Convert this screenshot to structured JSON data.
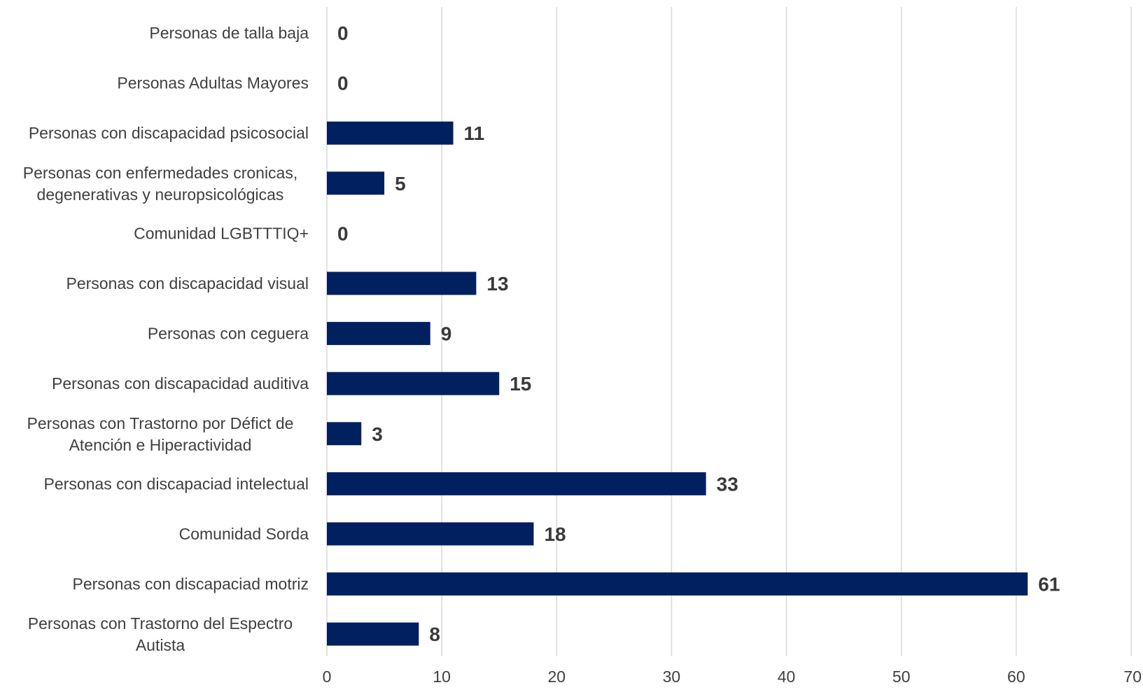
{
  "chart_data": {
    "type": "bar",
    "orientation": "horizontal",
    "categories": [
      "Personas de talla baja",
      "Personas Adultas Mayores",
      "Personas con discapacidad psicosocial",
      "Personas con enfermedades cronicas, degenerativas y neuropsicológicas",
      "Comunidad LGBTTTIQ+",
      "Personas con discapacidad visual",
      "Personas con ceguera",
      "Personas con discapacidad auditiva",
      "Personas con Trastorno por Défict de Atención e Hiperactividad",
      "Personas con discapaciad intelectual",
      "Comunidad Sorda",
      "Personas con discapaciad motriz",
      "Personas con Trastorno del Espectro Autista"
    ],
    "category_lines": [
      [
        "Personas de talla baja"
      ],
      [
        "Personas Adultas Mayores"
      ],
      [
        "Personas con discapacidad psicosocial"
      ],
      [
        "Personas con enfermedades cronicas,",
        "degenerativas y neuropsicológicas"
      ],
      [
        "Comunidad LGBTTTIQ+"
      ],
      [
        "Personas con discapacidad visual"
      ],
      [
        "Personas con ceguera"
      ],
      [
        "Personas con discapacidad auditiva"
      ],
      [
        "Personas con Trastorno por Défict de",
        "Atención e Hiperactividad"
      ],
      [
        "Personas con discapaciad intelectual"
      ],
      [
        "Comunidad Sorda"
      ],
      [
        "Personas con discapaciad motriz"
      ],
      [
        "Personas con Trastorno del Espectro",
        "Autista"
      ]
    ],
    "values": [
      0,
      0,
      11,
      5,
      0,
      13,
      9,
      15,
      3,
      33,
      18,
      61,
      8
    ],
    "xlim": [
      0,
      70
    ],
    "xticks": [
      0,
      10,
      20,
      30,
      40,
      50,
      60,
      70
    ],
    "title": "",
    "xlabel": "",
    "ylabel": "",
    "grid": "vertical",
    "legend": "none",
    "bar_color": "#002060",
    "grid_color": "#d9d9d9",
    "data_label_color": "#3a3a3a",
    "text_color": "#404040"
  }
}
